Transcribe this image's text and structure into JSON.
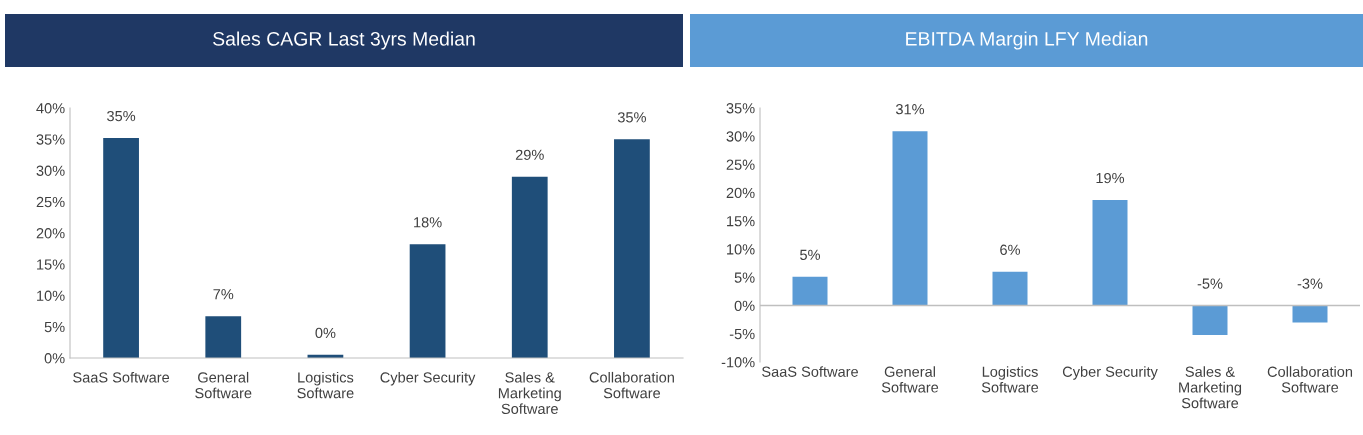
{
  "chart_data": [
    {
      "type": "bar",
      "title": "Sales CAGR Last 3yrs Median",
      "categories": [
        "SaaS Software",
        "General\nSoftware",
        "Logistics\nSoftware",
        "Cyber Security",
        "Sales &\nMarketing\nSoftware",
        "Collaboration\nSoftware"
      ],
      "values": [
        35.2,
        6.7,
        0.5,
        18.2,
        29.0,
        35.0
      ],
      "value_labels": [
        "35%",
        "7%",
        "0%",
        "18%",
        "29%",
        "35%"
      ],
      "color": "#1f4e79",
      "ylim": [
        0,
        40
      ],
      "yticks": [
        {
          "value": 0,
          "label": "0%"
        },
        {
          "value": 5,
          "label": "5%"
        },
        {
          "value": 10,
          "label": "10%"
        },
        {
          "value": 15,
          "label": "15%"
        },
        {
          "value": 20,
          "label": "20%"
        },
        {
          "value": 25,
          "label": "25%"
        },
        {
          "value": 30,
          "label": "30%"
        },
        {
          "value": 35,
          "label": "35%"
        },
        {
          "value": 40,
          "label": "40%"
        }
      ],
      "grid": false,
      "legend": false
    },
    {
      "type": "bar",
      "title": "EBITDA Margin LFY Median",
      "categories": [
        "SaaS Software",
        "General\nSoftware",
        "Logistics\nSoftware",
        "Cyber Security",
        "Sales &\nMarketing\nSoftware",
        "Collaboration\nSoftware"
      ],
      "values": [
        5.1,
        30.9,
        6.0,
        18.7,
        -5.2,
        -3.0
      ],
      "value_labels": [
        "5%",
        "31%",
        "6%",
        "19%",
        "-5%",
        "-3%"
      ],
      "color": "#5b9bd5",
      "ylim": [
        -10,
        35
      ],
      "yticks": [
        {
          "value": -10,
          "label": "-10%"
        },
        {
          "value": -5,
          "label": "-5%"
        },
        {
          "value": 0,
          "label": "0%"
        },
        {
          "value": 5,
          "label": "5%"
        },
        {
          "value": 10,
          "label": "10%"
        },
        {
          "value": 15,
          "label": "15%"
        },
        {
          "value": 20,
          "label": "20%"
        },
        {
          "value": 25,
          "label": "25%"
        },
        {
          "value": 30,
          "label": "30%"
        },
        {
          "value": 35,
          "label": "35%"
        }
      ],
      "ref_lines": [
        {
          "axis": "y",
          "value": 0,
          "color": "#bfbfbf"
        }
      ],
      "grid": false,
      "legend": false
    }
  ]
}
